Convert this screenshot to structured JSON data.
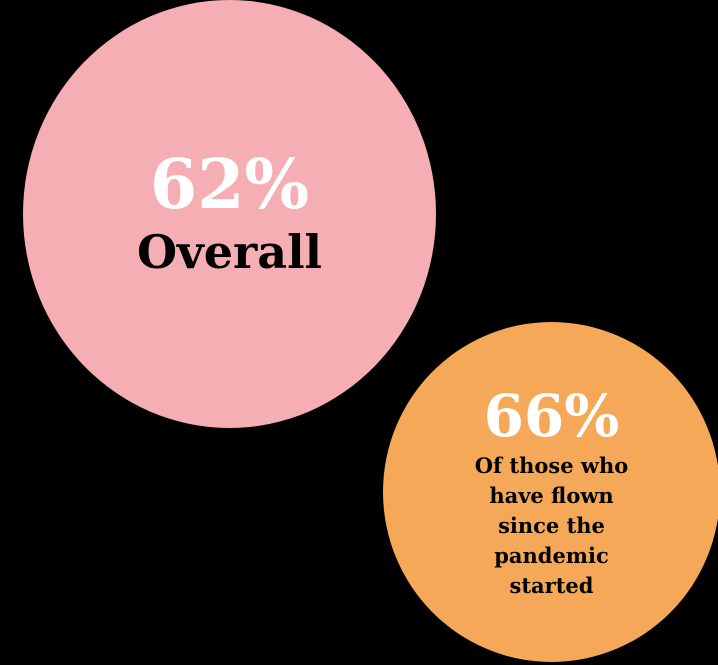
{
  "chart_data": {
    "type": "bubble",
    "bubbles": [
      {
        "value": "62%",
        "label": "Overall",
        "color": "#f5aeb4"
      },
      {
        "value": "66%",
        "label": "Of those who have flown since the pandemic started",
        "color": "#f5a958"
      }
    ],
    "background": "#000000"
  }
}
